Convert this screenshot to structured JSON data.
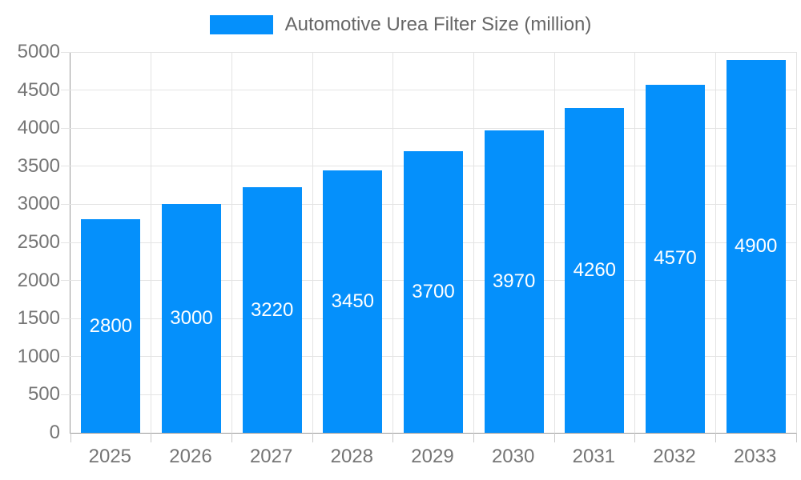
{
  "chart_data": {
    "type": "bar",
    "legend": "Automotive Urea Filter Size (million)",
    "categories": [
      "2025",
      "2026",
      "2027",
      "2028",
      "2029",
      "2030",
      "2031",
      "2032",
      "2033"
    ],
    "values": [
      2800,
      3000,
      3220,
      3450,
      3700,
      3970,
      4260,
      4570,
      4900
    ],
    "bar_labels": [
      "2800",
      "3000",
      "3220",
      "3450",
      "3700",
      "3970",
      "4260",
      "4570",
      "4900"
    ],
    "ylim": [
      0,
      5000
    ],
    "ytick_step": 500,
    "ytick_labels": [
      "0",
      "500",
      "1000",
      "1500",
      "2000",
      "2500",
      "3000",
      "3500",
      "4000",
      "4500",
      "5000"
    ],
    "grid": true,
    "legend_position": "top",
    "bar_color": "#0590fb",
    "bar_label_color": "#ffffff",
    "axis_text_color": "#757575",
    "legend_text_color": "#666666",
    "gridline_color": "#e3e3e3"
  }
}
